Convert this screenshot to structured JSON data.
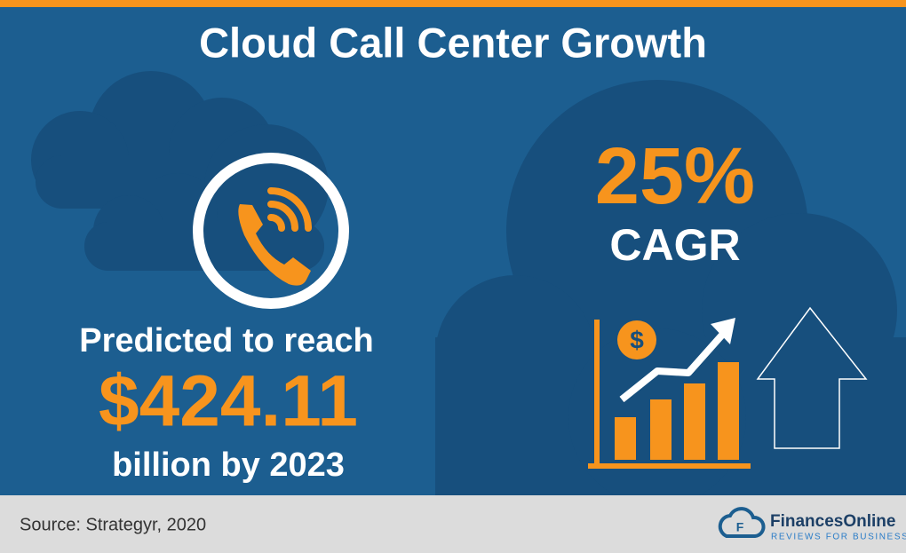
{
  "header": {
    "title": "Cloud Call Center Growth"
  },
  "left": {
    "line1": "Predicted to reach",
    "amount": "$424.11",
    "line2": "billion by 2023"
  },
  "right": {
    "rate": "25%",
    "label": "CAGR"
  },
  "footer": {
    "source": "Source: Strategyr, 2020",
    "brand": "FinancesOnline",
    "tagline": "REVIEWS FOR BUSINESS"
  }
}
